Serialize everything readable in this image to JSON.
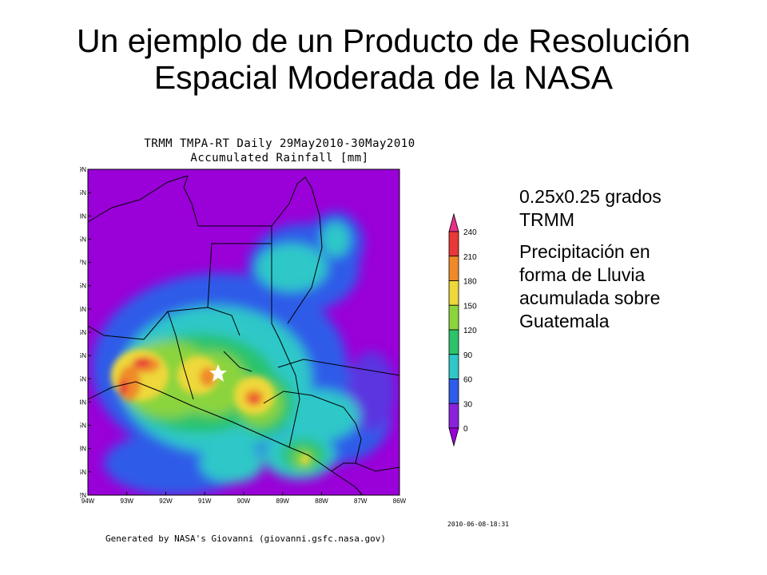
{
  "slide": {
    "title_line1": "Un ejemplo de un Producto de Resolución",
    "title_line2": "Espacial Moderada de la NASA"
  },
  "map": {
    "plot_title_line1": "TRMM TMPA-RT Daily 29May2010-30May2010",
    "plot_title_line2": "Accumulated Rainfall [mm]",
    "lat_labels": [
      "19N",
      "18.5N",
      "18N",
      "17.5N",
      "17N",
      "16.5N",
      "16N",
      "15.5N",
      "15N",
      "14.5N",
      "14N",
      "13.5N",
      "13N",
      "12.5N",
      "12N"
    ],
    "lon_labels": [
      "94W",
      "93W",
      "92W",
      "91W",
      "90W",
      "89W",
      "88W",
      "87W",
      "86W"
    ],
    "lat_range": [
      12,
      19
    ],
    "lon_range": [
      -94,
      -86
    ],
    "marker_icon": "star-icon",
    "footer_credit": "Generated by NASA's Giovanni (giovanni.gsfc.nasa.gov)",
    "footer_date": "2010-06-08-18:31"
  },
  "legend": {
    "ticks": [
      "240",
      "210",
      "180",
      "150",
      "120",
      "90",
      "60",
      "30",
      "0"
    ],
    "colors": [
      "#e8318b",
      "#e83838",
      "#ef8a2a",
      "#eed83a",
      "#8cd43c",
      "#2cc36a",
      "#2ec8c8",
      "#2f5ce8",
      "#8a22dd",
      "#9a00d8"
    ]
  },
  "info": {
    "line1": "0.25x0.25 grados",
    "line2": "TRMM",
    "line3": "Precipitación en",
    "line4": "forma de Lluvia",
    "line5": "acumulada sobre",
    "line6": "Guatemala"
  }
}
